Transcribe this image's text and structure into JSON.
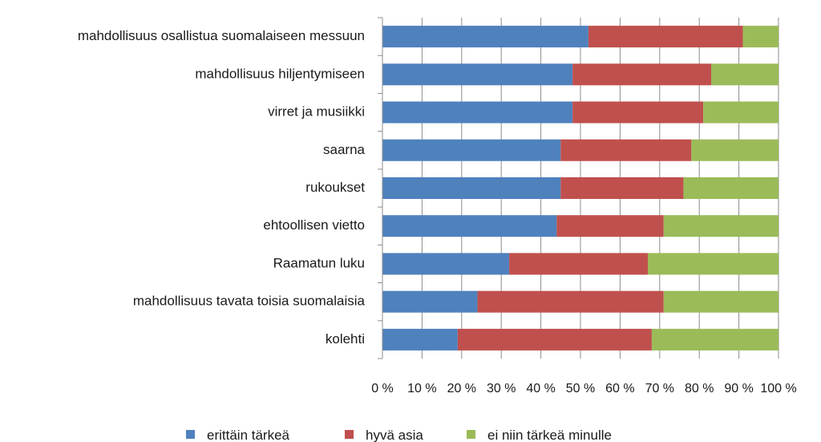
{
  "chart_data": {
    "type": "bar",
    "orientation": "horizontal",
    "stacked": true,
    "percent_stacked": true,
    "categories": [
      "mahdollisuus osallistua suomalaiseen messuun",
      "mahdollisuus hiljentymiseen",
      "virret ja musiikki",
      "saarna",
      "rukoukset",
      "ehtoollisen vietto",
      "Raamatun  luku",
      "mahdollisuus tavata toisia suomalaisia",
      "kolehti"
    ],
    "series": [
      {
        "name": "erittäin tärkeä",
        "color": "#4f81bd",
        "values": [
          52,
          48,
          48,
          45,
          45,
          44,
          32,
          24,
          19
        ]
      },
      {
        "name": "hyvä asia",
        "color": "#c0504d",
        "values": [
          39,
          35,
          33,
          33,
          31,
          27,
          35,
          47,
          49
        ]
      },
      {
        "name": "ei niin tärkeä minulle",
        "color": "#9bbb59",
        "values": [
          9,
          17,
          19,
          22,
          24,
          29,
          33,
          29,
          32
        ]
      }
    ],
    "xlim": [
      0,
      100
    ],
    "x_ticks": [
      "0 %",
      "10 %",
      "20 %",
      "30 %",
      "40 %",
      "50 %",
      "60 %",
      "70 %",
      "80 %",
      "90 %",
      "100 %"
    ],
    "grid": true,
    "legend_position": "bottom"
  }
}
